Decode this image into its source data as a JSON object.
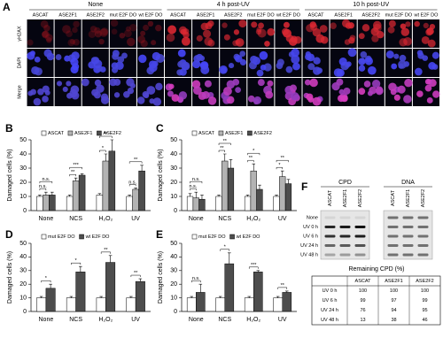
{
  "panel_a": {
    "label": "A",
    "conditions": [
      "None",
      "4 h post-UV",
      "10 h post-UV"
    ],
    "lines": [
      "ASCAT",
      "ASE2F1",
      "ASE2F2",
      "mut E2F DO",
      "wt E2F DO"
    ],
    "rows": [
      "γH2AX",
      "DAPI",
      "Merge"
    ]
  },
  "chart_data": [
    {
      "panel": "B",
      "type": "bar",
      "ylabel": "Damaged cells (%)",
      "categories": [
        "None",
        "NCS",
        "H₂O₂",
        "UV"
      ],
      "series": [
        {
          "name": "ASCAT",
          "color": "#ffffff",
          "values": [
            10,
            10,
            11,
            10
          ],
          "errors": [
            1,
            1,
            1,
            1
          ]
        },
        {
          "name": "ASE2F1",
          "color": "#b3b3b3",
          "values": [
            11,
            21,
            35,
            15
          ],
          "errors": [
            2,
            2,
            5,
            1
          ]
        },
        {
          "name": "ASE2F2",
          "color": "#4d4d4d",
          "values": [
            11,
            25,
            42,
            28
          ],
          "errors": [
            2,
            1,
            8,
            4
          ]
        }
      ],
      "ylim": [
        0,
        50
      ],
      "yticks": [
        0,
        10,
        20,
        30,
        40,
        50
      ],
      "annotations": [
        {
          "text": "n.s.",
          "category": "None",
          "series": [
            "ASCAT",
            "ASE2F1"
          ]
        },
        {
          "text": "n.s.",
          "category": "None",
          "series": [
            "ASCAT",
            "ASE2F2"
          ]
        },
        {
          "text": "**",
          "category": "NCS",
          "series": [
            "ASCAT",
            "ASE2F1"
          ]
        },
        {
          "text": "***",
          "category": "NCS",
          "series": [
            "ASCAT",
            "ASE2F2"
          ]
        },
        {
          "text": "*",
          "category": "H₂O₂",
          "series": [
            "ASCAT",
            "ASE2F1"
          ]
        },
        {
          "text": "**",
          "category": "H₂O₂",
          "series": [
            "ASCAT",
            "ASE2F2"
          ]
        },
        {
          "text": "n.s.",
          "category": "UV",
          "series": [
            "ASCAT",
            "ASE2F1"
          ]
        },
        {
          "text": "**",
          "category": "UV",
          "series": [
            "ASCAT",
            "ASE2F2"
          ]
        }
      ]
    },
    {
      "panel": "C",
      "type": "bar",
      "ylabel": "Damaged cells (%)",
      "categories": [
        "None",
        "NCS",
        "H₂O₂",
        "UV"
      ],
      "series": [
        {
          "name": "ASCAT",
          "color": "#ffffff",
          "values": [
            10,
            10,
            10,
            10
          ],
          "errors": [
            2,
            1,
            1,
            1
          ]
        },
        {
          "name": "ASE2F1",
          "color": "#b3b3b3",
          "values": [
            9,
            35,
            28,
            24
          ],
          "errors": [
            4,
            5,
            5,
            4
          ]
        },
        {
          "name": "ASE2F2",
          "color": "#4d4d4d",
          "values": [
            8,
            30,
            15,
            19
          ],
          "errors": [
            3,
            6,
            3,
            3
          ]
        }
      ],
      "ylim": [
        0,
        50
      ],
      "yticks": [
        0,
        10,
        20,
        30,
        40,
        50
      ],
      "annotations": [
        {
          "text": "n.s.",
          "category": "None",
          "series": [
            "ASCAT",
            "ASE2F1"
          ]
        },
        {
          "text": "n.s.",
          "category": "None",
          "series": [
            "ASCAT",
            "ASE2F2"
          ]
        },
        {
          "text": "**",
          "category": "NCS",
          "series": [
            "ASCAT",
            "ASE2F1"
          ]
        },
        {
          "text": "**",
          "category": "NCS",
          "series": [
            "ASCAT",
            "ASE2F2"
          ]
        },
        {
          "text": "**",
          "category": "H₂O₂",
          "series": [
            "ASCAT",
            "ASE2F1"
          ]
        },
        {
          "text": "*",
          "category": "H₂O₂",
          "series": [
            "ASCAT",
            "ASE2F2"
          ]
        },
        {
          "text": "*",
          "category": "UV",
          "series": [
            "ASCAT",
            "ASE2F1"
          ]
        },
        {
          "text": "**",
          "category": "UV",
          "series": [
            "ASCAT",
            "ASE2F2"
          ]
        }
      ]
    },
    {
      "panel": "D",
      "type": "bar",
      "ylabel": "Damaged cells (%)",
      "categories": [
        "None",
        "NCS",
        "H₂O₂",
        "UV"
      ],
      "series": [
        {
          "name": "mut E2F DO",
          "color": "#ffffff",
          "values": [
            10,
            10,
            10,
            10
          ],
          "errors": [
            1,
            1,
            1,
            1
          ]
        },
        {
          "name": "wt E2F DO",
          "color": "#4d4d4d",
          "values": [
            17,
            29,
            36,
            22
          ],
          "errors": [
            3,
            4,
            5,
            2
          ]
        }
      ],
      "ylim": [
        0,
        50
      ],
      "yticks": [
        0,
        10,
        20,
        30,
        40,
        50
      ],
      "annotations": [
        {
          "text": "*",
          "category": "None",
          "series": [
            "mut E2F DO",
            "wt E2F DO"
          ]
        },
        {
          "text": "*",
          "category": "NCS",
          "series": [
            "mut E2F DO",
            "wt E2F DO"
          ]
        },
        {
          "text": "**",
          "category": "H₂O₂",
          "series": [
            "mut E2F DO",
            "wt E2F DO"
          ]
        },
        {
          "text": "**",
          "category": "UV",
          "series": [
            "mut E2F DO",
            "wt E2F DO"
          ]
        }
      ]
    },
    {
      "panel": "E",
      "type": "bar",
      "ylabel": "Damaged cells (%)",
      "categories": [
        "None",
        "NCS",
        "H₂O₂",
        "UV"
      ],
      "series": [
        {
          "name": "mut E2F DO",
          "color": "#ffffff",
          "values": [
            10,
            10,
            10,
            10
          ],
          "errors": [
            1,
            1,
            1,
            1
          ]
        },
        {
          "name": "wt E2F DO",
          "color": "#4d4d4d",
          "values": [
            14,
            35,
            29,
            14
          ],
          "errors": [
            6,
            8,
            1,
            1
          ]
        }
      ],
      "ylim": [
        0,
        50
      ],
      "yticks": [
        0,
        10,
        20,
        30,
        40,
        50
      ],
      "annotations": [
        {
          "text": "n.s.",
          "category": "None",
          "series": [
            "mut E2F DO",
            "wt E2F DO"
          ]
        },
        {
          "text": "*",
          "category": "NCS",
          "series": [
            "mut E2F DO",
            "wt E2F DO"
          ]
        },
        {
          "text": "***",
          "category": "H₂O₂",
          "series": [
            "mut E2F DO",
            "wt E2F DO"
          ]
        },
        {
          "text": "**",
          "category": "UV",
          "series": [
            "mut E2F DO",
            "wt E2F DO"
          ]
        }
      ]
    }
  ],
  "panel_f": {
    "label": "F",
    "blots": [
      "CPD",
      "DNA"
    ],
    "lines": [
      "ASCAT",
      "ASE2F1",
      "ASE2F2"
    ],
    "conditions": [
      "None",
      "UV 0 h",
      "UV 6 h",
      "UV 24 h",
      "UV 48 h"
    ],
    "table": {
      "title": "Remaining CPD (%)",
      "header": [
        "ASCAT",
        "ASE2F1",
        "ASE2F2"
      ],
      "rows": [
        [
          "UV 0 h",
          "100",
          "100",
          "100"
        ],
        [
          "UV 6 h",
          "99",
          "97",
          "99"
        ],
        [
          "UV 24 h",
          "76",
          "94",
          "95"
        ],
        [
          "UV 48 h",
          "13",
          "38",
          "46"
        ]
      ]
    }
  }
}
